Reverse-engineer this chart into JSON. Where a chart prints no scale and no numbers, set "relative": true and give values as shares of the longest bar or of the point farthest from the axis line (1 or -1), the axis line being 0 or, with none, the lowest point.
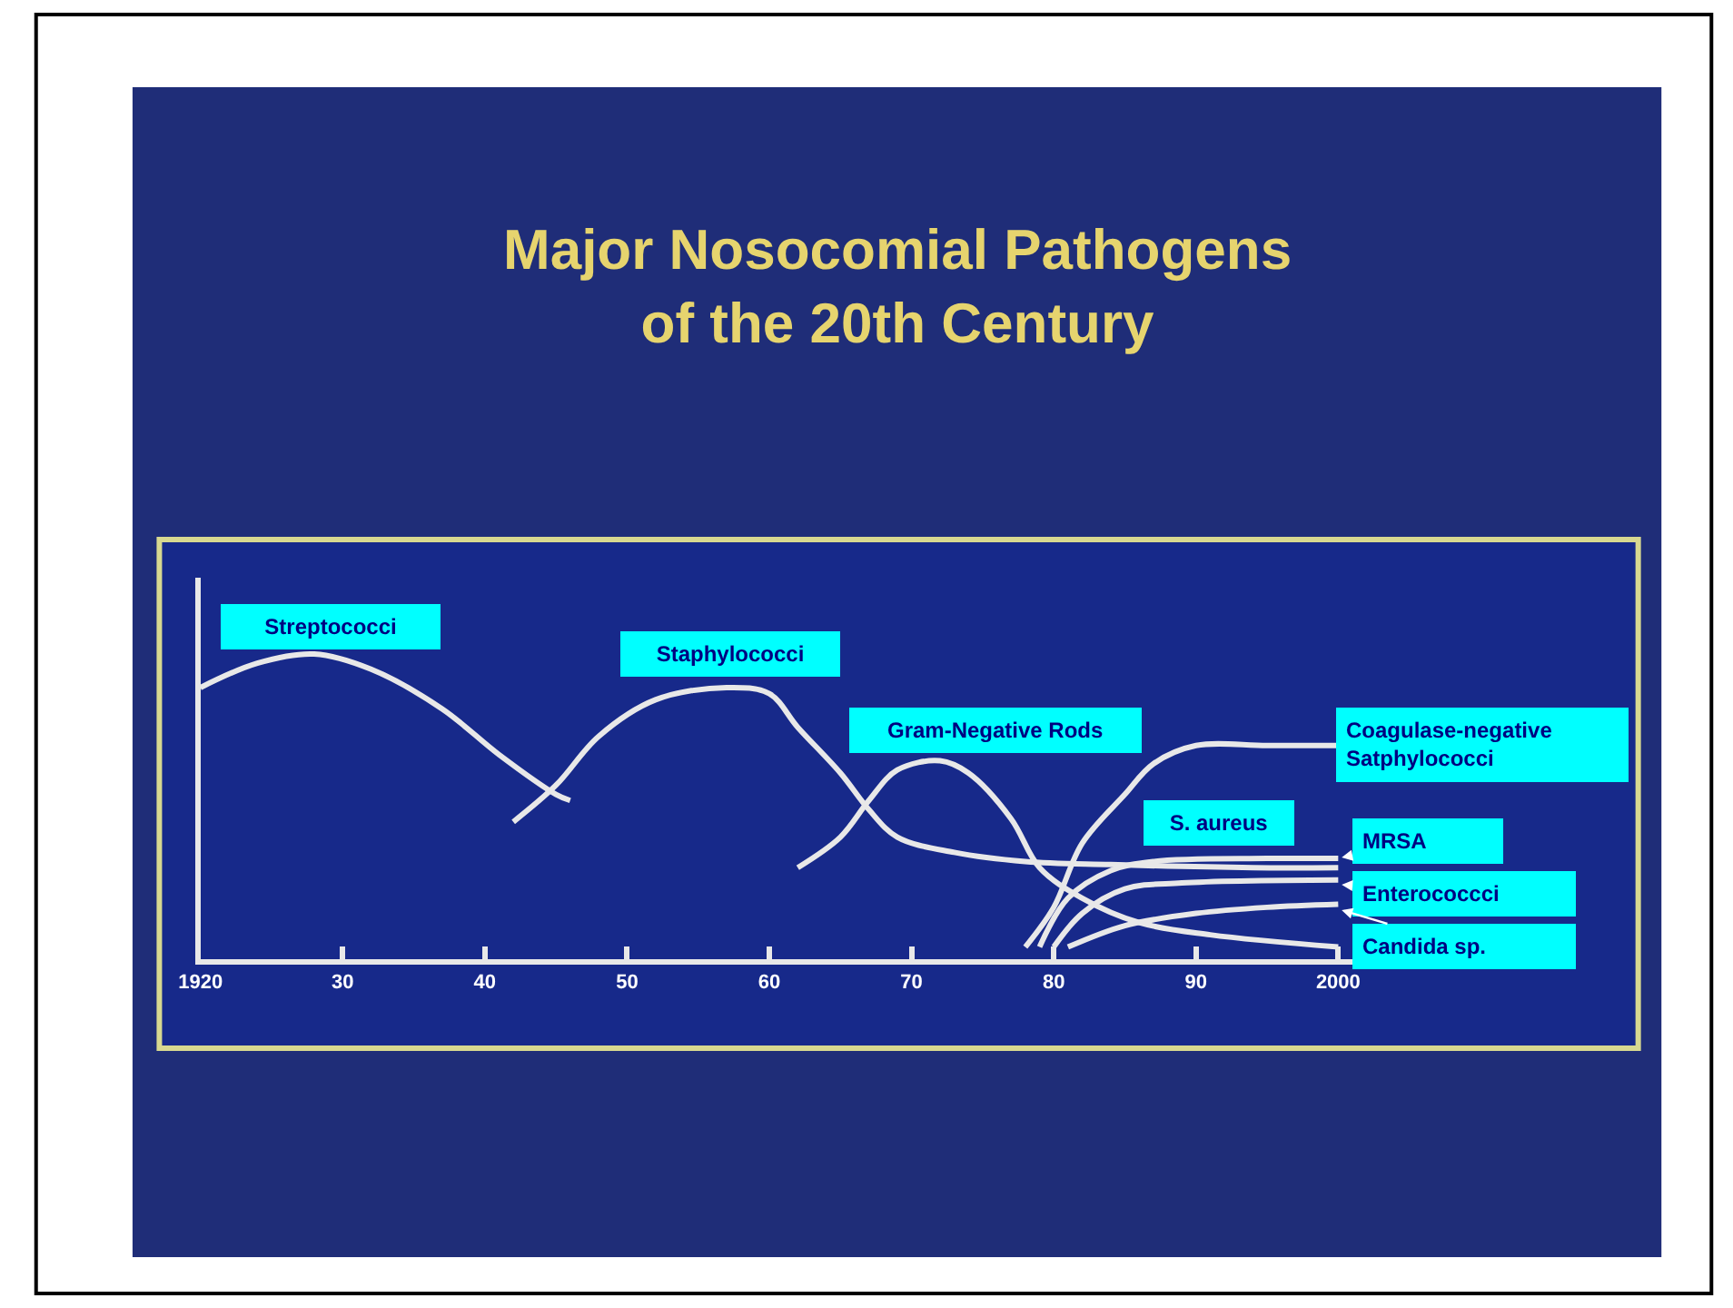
{
  "chart_data": {
    "type": "line",
    "title": "Major Nosocomial Pathogens\nof the 20th Century",
    "relative": true,
    "legend": false,
    "grid": false,
    "marker": "none",
    "line_style": "solid",
    "xlim": [
      1920,
      2001
    ],
    "xticks": [
      {
        "value": 1920,
        "label": "1920"
      },
      {
        "value": 1930,
        "label": "30"
      },
      {
        "value": 1940,
        "label": "40"
      },
      {
        "value": 1950,
        "label": "50"
      },
      {
        "value": 1960,
        "label": "60"
      },
      {
        "value": 1970,
        "label": "70"
      },
      {
        "value": 1980,
        "label": "80"
      },
      {
        "value": 1990,
        "label": "90"
      },
      {
        "value": 2000,
        "label": "2000"
      }
    ],
    "series": [
      {
        "name": "Streptococci",
        "color": "#e8e8e8",
        "x": [
          1920,
          1924,
          1928,
          1932,
          1937,
          1941,
          1945,
          1946
        ],
        "values": [
          0.89,
          0.97,
          1.0,
          0.95,
          0.82,
          0.67,
          0.54,
          0.52
        ]
      },
      {
        "name": "Staphylococci",
        "color": "#e8e8e8",
        "x": [
          1942,
          1945,
          1948,
          1952,
          1957,
          1960,
          1962,
          1965,
          1967,
          1969,
          1973,
          1978,
          1984,
          1994,
          2000
        ],
        "values": [
          0.45,
          0.57,
          0.73,
          0.85,
          0.89,
          0.87,
          0.76,
          0.61,
          0.49,
          0.4,
          0.35,
          0.32,
          0.31,
          0.3,
          0.3
        ]
      },
      {
        "name": "Gram-Negative Rods",
        "color": "#e8e8e8",
        "x": [
          1962,
          1965,
          1967,
          1969,
          1972,
          1974,
          1977,
          1979,
          1982,
          1986,
          1991,
          2000
        ],
        "values": [
          0.3,
          0.4,
          0.52,
          0.62,
          0.65,
          0.61,
          0.46,
          0.3,
          0.2,
          0.12,
          0.08,
          0.04
        ]
      },
      {
        "name": "Coagulase-negative\nSatphylococci",
        "color": "#e8e8e8",
        "x": [
          1978,
          1980,
          1982,
          1985,
          1987,
          1990,
          1995,
          2000
        ],
        "values": [
          0.04,
          0.17,
          0.38,
          0.54,
          0.64,
          0.7,
          0.7,
          0.7
        ]
      },
      {
        "name": "MRSA",
        "color": "#e8e8e8",
        "x": [
          1979,
          1981,
          1984,
          1987,
          1995,
          2000
        ],
        "values": [
          0.04,
          0.2,
          0.29,
          0.32,
          0.33,
          0.33
        ]
      },
      {
        "name": "Enterococcci",
        "color": "#e8e8e8",
        "x": [
          1980,
          1982,
          1985,
          1989,
          2000
        ],
        "values": [
          0.04,
          0.15,
          0.23,
          0.25,
          0.26
        ]
      },
      {
        "name": "Candida sp.",
        "color": "#e8e8e8",
        "x": [
          1981,
          1985,
          1990,
          1995,
          2000
        ],
        "values": [
          0.04,
          0.11,
          0.15,
          0.17,
          0.18
        ]
      }
    ],
    "annotations": [
      "S. aureus"
    ]
  }
}
